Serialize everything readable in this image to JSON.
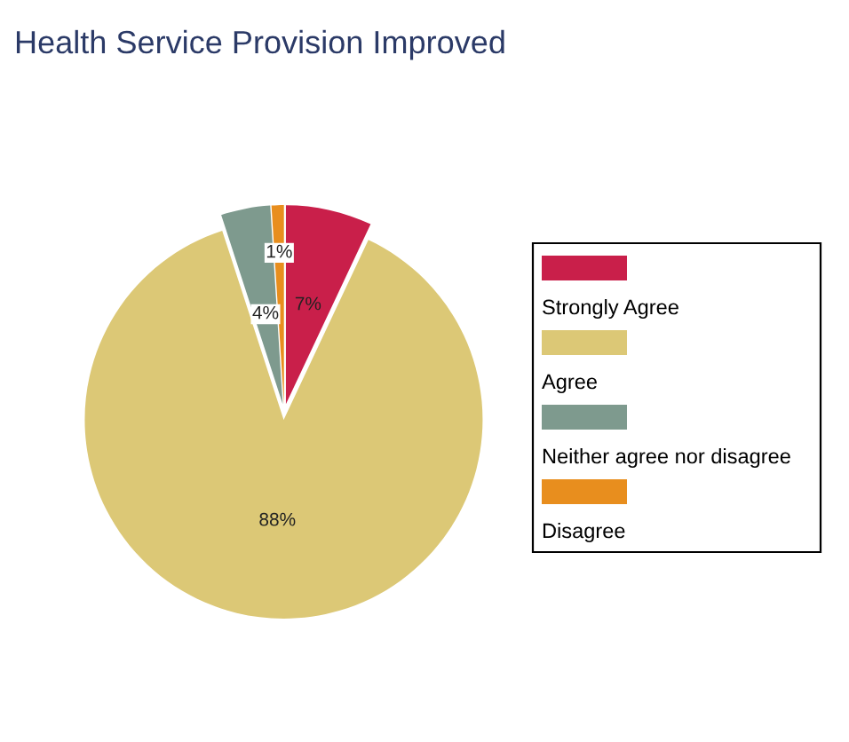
{
  "chart_data": {
    "type": "pie",
    "title": "Health Service Provision Improved",
    "categories": [
      "Strongly Agree",
      "Agree",
      "Neither agree nor disagree",
      "Disagree"
    ],
    "values": [
      7,
      88,
      4,
      1
    ],
    "colors": [
      "#c91f4a",
      "#dcc876",
      "#7e9a8e",
      "#e88e1e"
    ],
    "value_labels": [
      "7%",
      "88%",
      "4%",
      "1%"
    ],
    "legend": "right"
  }
}
